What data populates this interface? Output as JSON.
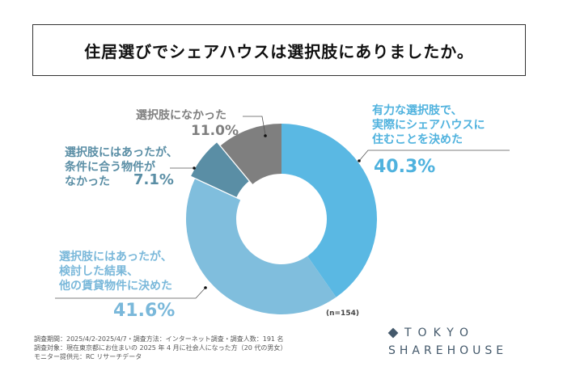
{
  "title": "住居選びでシェアハウスは選択肢にありましたか。",
  "chart_data": {
    "type": "donut",
    "title": "住居選びでシェアハウスは選択肢にありましたか。",
    "start": "top, clockwise",
    "slices": [
      {
        "label": "有力な選択肢で、実際にシェアハウスに住むことを決めた",
        "lines": [
          "有力な選択肢で、",
          "実際にシェアハウスに",
          "住むことを決めた"
        ],
        "value": 40.3,
        "text": "40.3%",
        "color": "#5ab8e3",
        "text_color": "#4fb2de"
      },
      {
        "label": "選択肢にはあったが、検討した結果、他の賃貸物件に決めた",
        "lines": [
          "選択肢にはあったが、",
          "検討した結果、",
          "他の賃貸物件に決めた"
        ],
        "value": 41.6,
        "text": "41.6%",
        "color": "#80bedd",
        "text_color": "#7ab8da"
      },
      {
        "label": "選択肢にはあったが、条件に合う物件がなかった",
        "lines": [
          "選択肢にはあったが、",
          "条件に合う物件が",
          "なかった"
        ],
        "value": 7.1,
        "text": "7.1%",
        "color": "#5a8ea5",
        "text_color": "#5a8ea5"
      },
      {
        "label": "選択肢になかった",
        "lines": [
          "選択肢になかった"
        ],
        "value": 11.0,
        "text": "11.0%",
        "color": "#7f7f7f",
        "text_color": "#7f7f7f"
      }
    ],
    "n_label": "(n=154)"
  },
  "footnote": [
    "調査期間：2025/4/2-2025/4/7・調査方法：インターネット調査・調査人数：191 名",
    "調査対象：現在東京都にお住まいの 2025 年 4 月に社会人になった方（20 代の男女）",
    "モニター提供元：RC リサーチデータ"
  ],
  "logo": {
    "line1": "TOKYO",
    "line2": "SHAREHOUSE"
  }
}
